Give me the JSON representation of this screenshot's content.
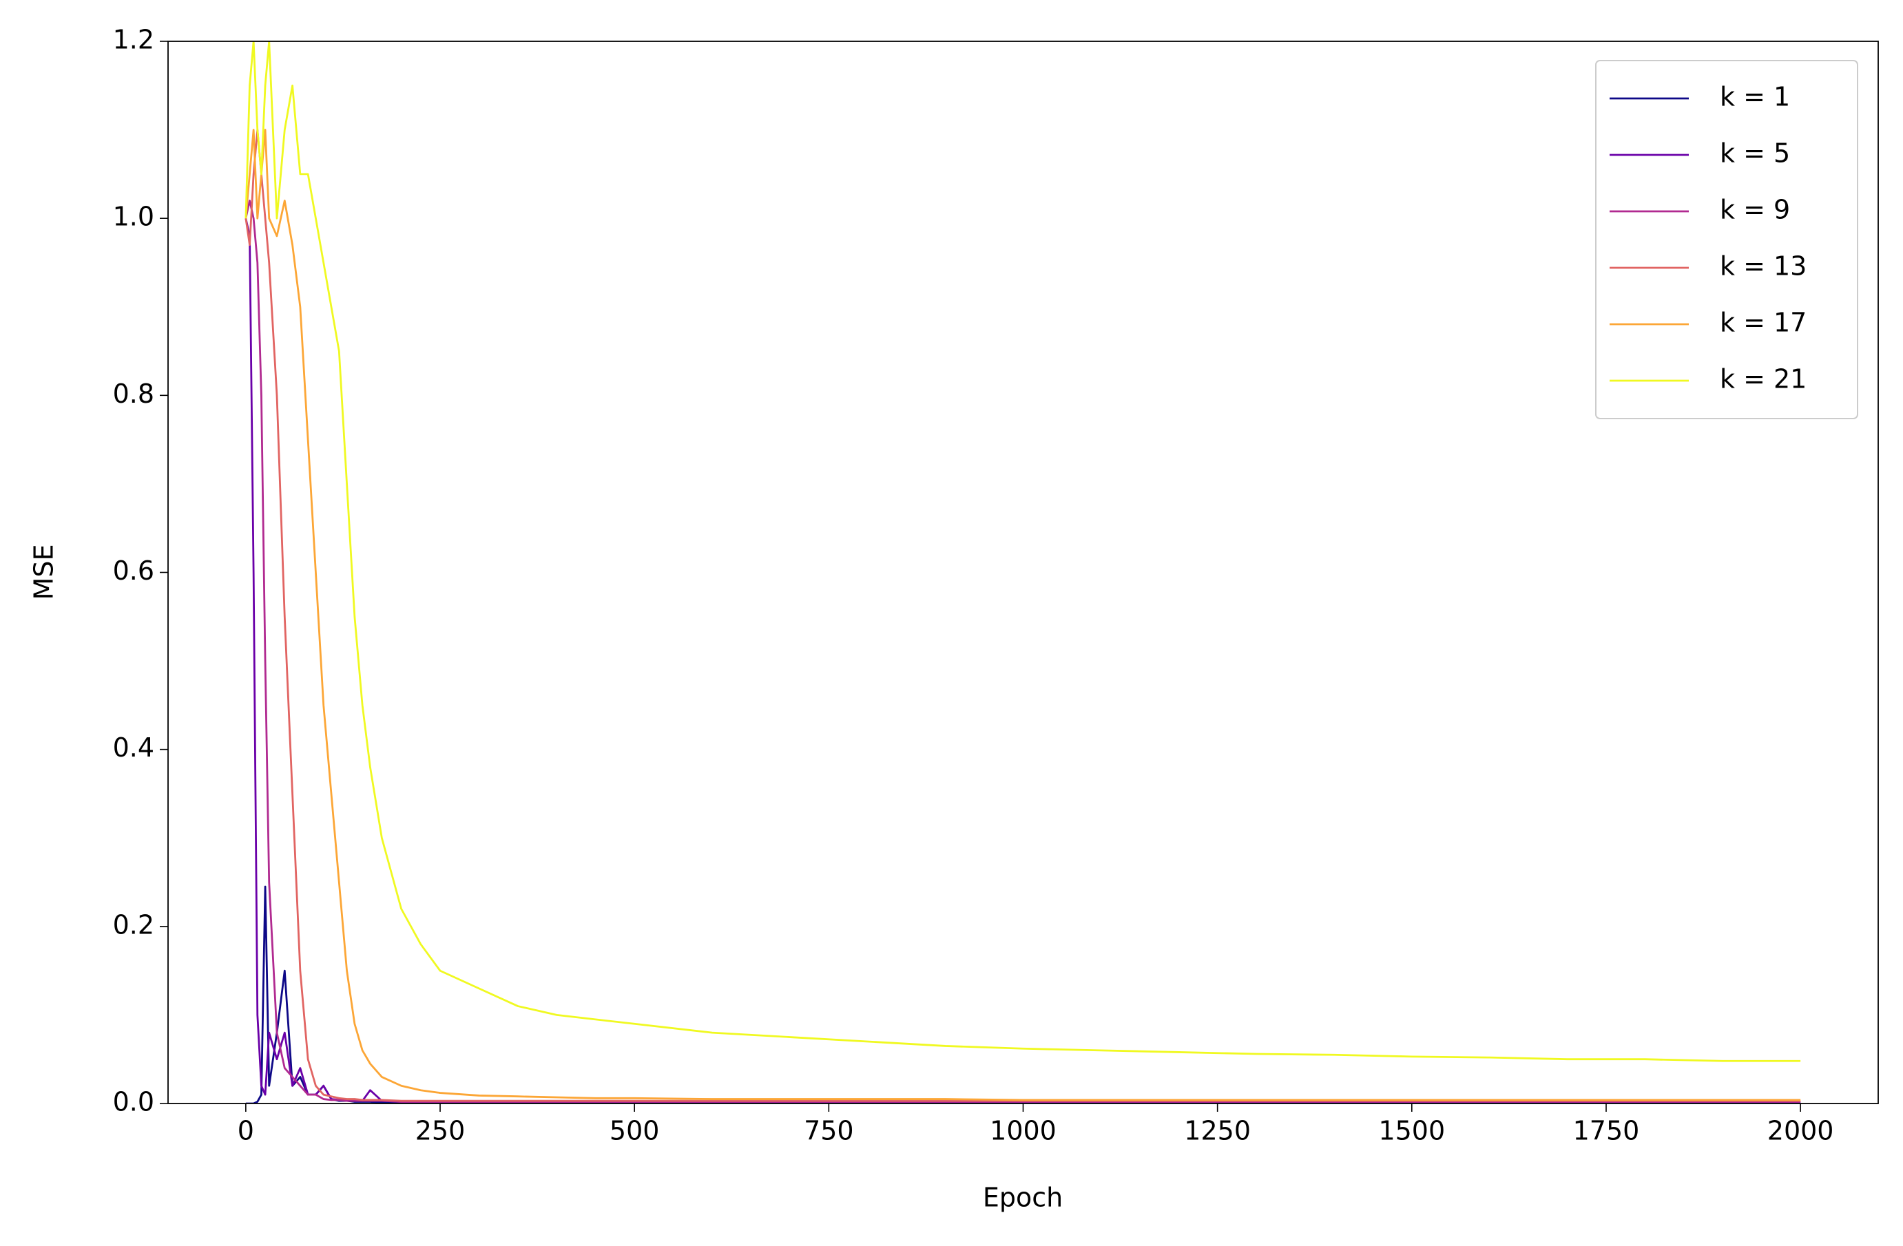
{
  "chart_data": {
    "type": "line",
    "x_label": "Epoch",
    "y_label": "MSE",
    "xlim": [
      -100,
      2100
    ],
    "ylim": [
      0,
      1.2
    ],
    "xticks": [
      0,
      250,
      500,
      750,
      1000,
      1250,
      1500,
      1750,
      2000
    ],
    "yticks": [
      {
        "value": 0,
        "label": "0.0"
      },
      {
        "value": 0.2,
        "label": "0.2"
      },
      {
        "value": 0.4,
        "label": "0.4"
      },
      {
        "value": 0.6,
        "label": "0.6"
      },
      {
        "value": 0.8,
        "label": "0.8"
      },
      {
        "value": 1,
        "label": "1.0"
      },
      {
        "value": 1.2,
        "label": "1.2"
      }
    ],
    "legend": "upper right",
    "x": [
      0,
      5,
      10,
      15,
      20,
      25,
      30,
      40,
      50,
      60,
      70,
      80,
      90,
      100,
      110,
      120,
      130,
      140,
      150,
      160,
      175,
      200,
      225,
      250,
      300,
      350,
      400,
      450,
      500,
      600,
      700,
      800,
      900,
      1000,
      1100,
      1200,
      1300,
      1400,
      1500,
      1600,
      1700,
      1800,
      1900,
      2000
    ],
    "series": [
      {
        "name": "k = 1",
        "color": "#0d0887",
        "values": [
          0,
          0,
          0,
          0.002,
          0.01,
          0.245,
          0.02,
          0.08,
          0.15,
          0.02,
          0.03,
          0.01,
          0.01,
          0.02,
          0.005,
          0.003,
          0.003,
          0.002,
          0.002,
          0.002,
          0.001,
          0.001,
          0.001,
          0.001,
          0.001,
          0.001,
          0.001,
          0.001,
          0.001,
          0.001,
          0.001,
          0.001,
          0.001,
          0.001,
          0.001,
          0.001,
          0.001,
          0.001,
          0.001,
          0.001,
          0.001,
          0.001,
          0.001,
          0.001
        ]
      },
      {
        "name": "k = 5",
        "color": "#6a00a8",
        "values": [
          1.0,
          0.98,
          0.6,
          0.1,
          0.02,
          0.01,
          0.08,
          0.05,
          0.08,
          0.02,
          0.04,
          0.01,
          0.01,
          0.02,
          0.005,
          0.004,
          0.004,
          0.003,
          0.003,
          0.015,
          0.003,
          0.002,
          0.002,
          0.002,
          0.002,
          0.002,
          0.002,
          0.002,
          0.002,
          0.002,
          0.002,
          0.002,
          0.002,
          0.002,
          0.002,
          0.002,
          0.002,
          0.002,
          0.002,
          0.002,
          0.002,
          0.002,
          0.002,
          0.002
        ]
      },
      {
        "name": "k = 9",
        "color": "#b12a90",
        "values": [
          1.0,
          1.02,
          1.0,
          0.95,
          0.8,
          0.5,
          0.25,
          0.08,
          0.04,
          0.03,
          0.02,
          0.01,
          0.01,
          0.005,
          0.004,
          0.004,
          0.003,
          0.003,
          0.003,
          0.003,
          0.003,
          0.002,
          0.002,
          0.002,
          0.002,
          0.002,
          0.002,
          0.002,
          0.002,
          0.002,
          0.002,
          0.002,
          0.002,
          0.002,
          0.002,
          0.002,
          0.002,
          0.002,
          0.002,
          0.002,
          0.002,
          0.002,
          0.002,
          0.002
        ]
      },
      {
        "name": "k = 13",
        "color": "#e16462",
        "values": [
          1.0,
          0.97,
          1.05,
          1.1,
          1.05,
          1.0,
          0.95,
          0.8,
          0.55,
          0.35,
          0.15,
          0.05,
          0.02,
          0.01,
          0.008,
          0.006,
          0.005,
          0.005,
          0.004,
          0.004,
          0.004,
          0.003,
          0.003,
          0.003,
          0.003,
          0.003,
          0.003,
          0.003,
          0.003,
          0.003,
          0.003,
          0.003,
          0.003,
          0.003,
          0.003,
          0.003,
          0.003,
          0.003,
          0.003,
          0.003,
          0.003,
          0.003,
          0.003,
          0.003
        ]
      },
      {
        "name": "k = 17",
        "color": "#fca636",
        "values": [
          1.0,
          1.05,
          1.1,
          1.0,
          1.05,
          1.1,
          1.0,
          0.98,
          1.02,
          0.97,
          0.9,
          0.75,
          0.6,
          0.45,
          0.35,
          0.25,
          0.15,
          0.09,
          0.06,
          0.045,
          0.03,
          0.02,
          0.015,
          0.012,
          0.009,
          0.008,
          0.007,
          0.006,
          0.006,
          0.005,
          0.005,
          0.005,
          0.005,
          0.004,
          0.004,
          0.004,
          0.004,
          0.004,
          0.004,
          0.004,
          0.004,
          0.004,
          0.004,
          0.004
        ]
      },
      {
        "name": "k = 21",
        "color": "#f0f921",
        "values": [
          1.0,
          1.15,
          1.2,
          1.1,
          1.05,
          1.15,
          1.2,
          1.0,
          1.1,
          1.15,
          1.05,
          1.05,
          1.0,
          0.95,
          0.9,
          0.85,
          0.7,
          0.55,
          0.45,
          0.38,
          0.3,
          0.22,
          0.18,
          0.15,
          0.13,
          0.11,
          0.1,
          0.095,
          0.09,
          0.08,
          0.075,
          0.07,
          0.065,
          0.062,
          0.06,
          0.058,
          0.056,
          0.055,
          0.053,
          0.052,
          0.05,
          0.05,
          0.048,
          0.048
        ]
      }
    ]
  }
}
